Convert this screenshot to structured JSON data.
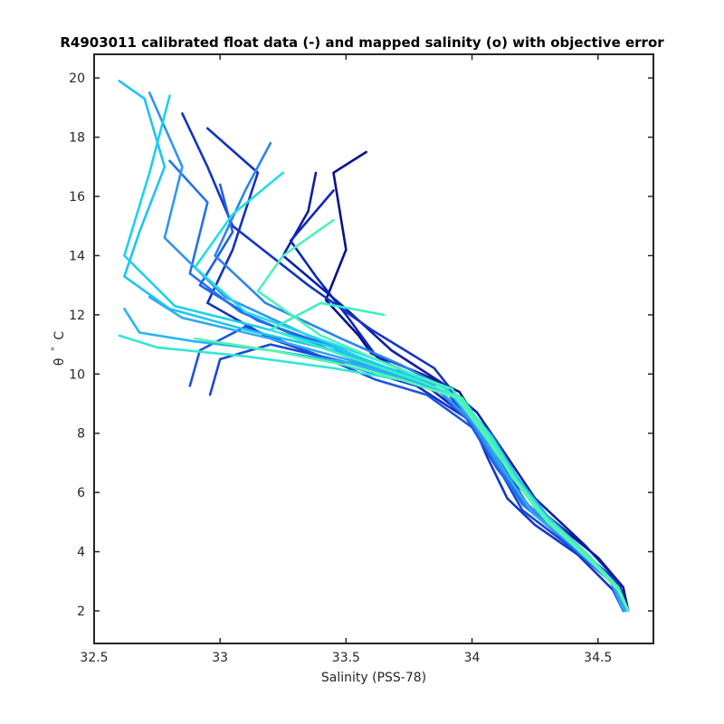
{
  "chart_data": {
    "type": "line",
    "title": "R4903011 calibrated float data (-) and mapped salinity (o) with objective error",
    "xlabel": "Salinity (PSS-78)",
    "ylabel_symbol": "θ",
    "ylabel_degree": "°",
    "ylabel_unit": "C",
    "xlim": [
      32.5,
      34.72
    ],
    "ylim": [
      0.9,
      20.8
    ],
    "xticks": [
      32.5,
      33,
      33.5,
      34,
      34.5
    ],
    "xtick_labels": [
      "32.5",
      "33",
      "33.5",
      "34",
      "34.5"
    ],
    "yticks": [
      2,
      4,
      6,
      8,
      10,
      12,
      14,
      16,
      18,
      20
    ],
    "ytick_labels": [
      "2",
      "4",
      "6",
      "8",
      "10",
      "12",
      "14",
      "16",
      "18",
      "20"
    ],
    "grid": false,
    "legend": "none",
    "colormap": [
      "#0000a0",
      "#0a3cd8",
      "#1e6ef0",
      "#2aa0f5",
      "#1ed2ee",
      "#3cf0c8",
      "#60f5b0"
    ],
    "series": [
      {
        "color": "#08128a",
        "x": [
          33.58,
          33.45,
          33.5,
          33.42,
          33.55,
          33.6,
          33.8,
          33.95,
          34.05,
          34.15,
          34.3,
          34.5,
          34.6,
          34.62
        ],
        "y": [
          17.5,
          16.8,
          14.2,
          12.5,
          11.3,
          10.7,
          10.0,
          9.4,
          8.0,
          6.5,
          5.2,
          3.8,
          2.8,
          2.0
        ]
      },
      {
        "color": "#0c1ea8",
        "x": [
          33.38,
          33.35,
          33.25,
          33.5,
          33.68,
          33.88,
          34.02,
          34.14,
          34.25,
          34.45,
          34.58,
          34.62
        ],
        "y": [
          16.8,
          15.5,
          14.0,
          12.2,
          10.8,
          9.7,
          8.7,
          7.2,
          5.8,
          4.2,
          3.0,
          2.0
        ]
      },
      {
        "color": "#0c28b8",
        "x": [
          33.45,
          33.28,
          33.38,
          33.5,
          33.62,
          33.82,
          34.0,
          34.12,
          34.22,
          34.4,
          34.56,
          34.61
        ],
        "y": [
          16.2,
          14.5,
          13.3,
          12.0,
          10.6,
          9.6,
          8.4,
          6.9,
          5.6,
          4.3,
          3.1,
          2.1
        ]
      },
      {
        "color": "#1030c0",
        "x": [
          32.95,
          33.15,
          33.05,
          32.95,
          33.2,
          33.5,
          33.78,
          33.98,
          34.1,
          34.22,
          34.42,
          34.58,
          34.62
        ],
        "y": [
          18.3,
          16.8,
          14.2,
          12.4,
          11.2,
          10.3,
          9.6,
          8.5,
          7.0,
          5.6,
          4.1,
          2.9,
          2.0
        ]
      },
      {
        "color": "#1234c8",
        "x": [
          32.85,
          32.95,
          33.05,
          33.35,
          33.6,
          33.85,
          33.98,
          34.06,
          34.14,
          34.25,
          34.42,
          34.56,
          34.6
        ],
        "y": [
          18.8,
          17.0,
          15.0,
          13.0,
          11.5,
          10.2,
          8.8,
          7.2,
          5.8,
          4.9,
          3.9,
          2.7,
          2.0
        ]
      },
      {
        "color": "#1848d8",
        "x": [
          32.96,
          33.0,
          33.2,
          33.5,
          33.7,
          33.9,
          34.02,
          34.12,
          34.2,
          34.4,
          34.55,
          34.6
        ],
        "y": [
          9.3,
          10.5,
          11.0,
          10.4,
          10.0,
          9.4,
          8.0,
          6.6,
          5.4,
          4.1,
          3.0,
          2.1
        ]
      },
      {
        "color": "#1c54e0",
        "x": [
          32.88,
          32.92,
          33.1,
          33.4,
          33.62,
          33.82,
          34.0,
          34.1,
          34.22,
          34.38,
          34.55,
          34.6
        ],
        "y": [
          9.6,
          10.8,
          11.6,
          10.6,
          9.8,
          9.3,
          8.2,
          6.8,
          5.5,
          4.4,
          3.1,
          2.0
        ]
      },
      {
        "color": "#2060e8",
        "x": [
          33.0,
          33.05,
          32.92,
          33.15,
          33.45,
          33.68,
          33.9,
          34.04,
          34.12,
          34.24,
          34.42,
          34.56,
          34.61
        ],
        "y": [
          16.4,
          14.8,
          13.0,
          11.8,
          10.9,
          10.0,
          9.4,
          8.1,
          6.7,
          5.4,
          4.2,
          3.0,
          2.0
        ]
      },
      {
        "color": "#2272ec",
        "x": [
          32.8,
          32.95,
          32.88,
          33.08,
          33.38,
          33.62,
          33.86,
          34.0,
          34.1,
          34.2,
          34.38,
          34.55,
          34.6
        ],
        "y": [
          17.2,
          15.8,
          13.4,
          12.1,
          11.0,
          10.2,
          9.5,
          8.3,
          6.9,
          5.6,
          4.3,
          3.0,
          2.0
        ]
      },
      {
        "color": "#2a84f0",
        "x": [
          33.2,
          33.1,
          32.98,
          33.18,
          33.48,
          33.72,
          33.9,
          34.02,
          34.12,
          34.22,
          34.4,
          34.55,
          34.6
        ],
        "y": [
          17.8,
          16.2,
          14.0,
          12.4,
          11.2,
          10.3,
          9.5,
          8.2,
          6.8,
          5.5,
          4.2,
          3.0,
          2.0
        ]
      },
      {
        "color": "#2e96f2",
        "x": [
          32.72,
          32.85,
          32.78,
          33.02,
          33.35,
          33.6,
          33.85,
          34.0,
          34.1,
          34.22,
          34.4,
          34.55,
          34.6
        ],
        "y": [
          19.5,
          17.0,
          14.6,
          12.6,
          11.3,
          10.4,
          9.6,
          8.4,
          7.0,
          5.6,
          4.3,
          3.0,
          2.0
        ]
      },
      {
        "color": "#2ea8f4",
        "x": [
          32.72,
          32.85,
          33.2,
          33.5,
          33.72,
          33.92,
          34.04,
          34.14,
          34.24,
          34.42,
          34.56,
          34.61
        ],
        "y": [
          12.6,
          11.9,
          11.2,
          10.5,
          9.9,
          9.3,
          8.0,
          6.6,
          5.3,
          4.1,
          2.9,
          2.0
        ]
      },
      {
        "color": "#26b6f2",
        "x": [
          32.62,
          32.68,
          32.9,
          33.2,
          33.5,
          33.75,
          33.95,
          34.08,
          34.18,
          34.3,
          34.46,
          34.58,
          34.62
        ],
        "y": [
          12.2,
          11.4,
          11.1,
          10.8,
          10.4,
          9.8,
          9.2,
          7.9,
          6.5,
          5.2,
          3.9,
          2.7,
          2.0
        ]
      },
      {
        "color": "#1ec4f0",
        "x": [
          32.6,
          32.7,
          32.78,
          32.68,
          32.62,
          32.8,
          33.1,
          33.45,
          33.72,
          33.92,
          34.06,
          34.16,
          34.28,
          34.46,
          34.58,
          34.62
        ],
        "y": [
          19.9,
          19.3,
          17.0,
          14.8,
          13.3,
          12.2,
          11.5,
          10.8,
          10.0,
          9.3,
          8.0,
          6.6,
          5.3,
          3.9,
          2.8,
          2.0
        ]
      },
      {
        "color": "#1cd0ee",
        "x": [
          32.8,
          32.72,
          32.62,
          32.82,
          33.15,
          33.45,
          33.7,
          33.92,
          34.04,
          34.14,
          34.26,
          34.44,
          34.58,
          34.62
        ],
        "y": [
          19.4,
          16.8,
          14.0,
          12.3,
          11.6,
          10.9,
          10.1,
          9.5,
          8.2,
          6.8,
          5.4,
          4.0,
          2.8,
          2.0
        ]
      },
      {
        "color": "#22dcea",
        "x": [
          33.25,
          33.05,
          32.9,
          33.1,
          33.42,
          33.68,
          33.9,
          34.04,
          34.14,
          34.26,
          34.44,
          34.58,
          34.62
        ],
        "y": [
          16.8,
          15.4,
          13.6,
          12.1,
          11.1,
          10.3,
          9.5,
          8.2,
          6.8,
          5.4,
          4.0,
          2.8,
          2.0
        ]
      },
      {
        "color": "#30e8d8",
        "x": [
          32.6,
          32.75,
          33.1,
          33.45,
          33.72,
          33.94,
          34.06,
          34.16,
          34.28,
          34.44,
          34.58,
          34.62
        ],
        "y": [
          11.3,
          10.9,
          10.6,
          10.2,
          9.8,
          9.2,
          7.9,
          6.5,
          5.2,
          3.9,
          2.8,
          2.0
        ]
      },
      {
        "color": "#3cefc4",
        "x": [
          33.65,
          33.4,
          33.2,
          33.5,
          33.78,
          33.96,
          34.08,
          34.18,
          34.3,
          34.46,
          34.58,
          34.62
        ],
        "y": [
          12.0,
          12.4,
          11.5,
          10.6,
          9.8,
          9.2,
          7.8,
          6.4,
          5.1,
          3.9,
          2.8,
          2.0
        ]
      },
      {
        "color": "#4cf2b8",
        "x": [
          33.45,
          33.25,
          33.15,
          33.4,
          33.7,
          33.92,
          34.04,
          34.14,
          34.26,
          34.44,
          34.58,
          34.62
        ],
        "y": [
          15.2,
          14.0,
          12.8,
          11.3,
          10.2,
          9.5,
          8.2,
          6.8,
          5.4,
          4.0,
          2.8,
          2.0
        ]
      },
      {
        "color": "#58f4b0",
        "x": [
          32.9,
          33.2,
          33.5,
          33.72,
          33.94,
          34.06,
          34.18,
          34.3,
          34.46,
          34.58,
          34.62
        ],
        "y": [
          11.2,
          10.8,
          10.3,
          9.8,
          9.2,
          7.8,
          6.3,
          5.0,
          3.8,
          2.7,
          2.0
        ]
      }
    ]
  }
}
